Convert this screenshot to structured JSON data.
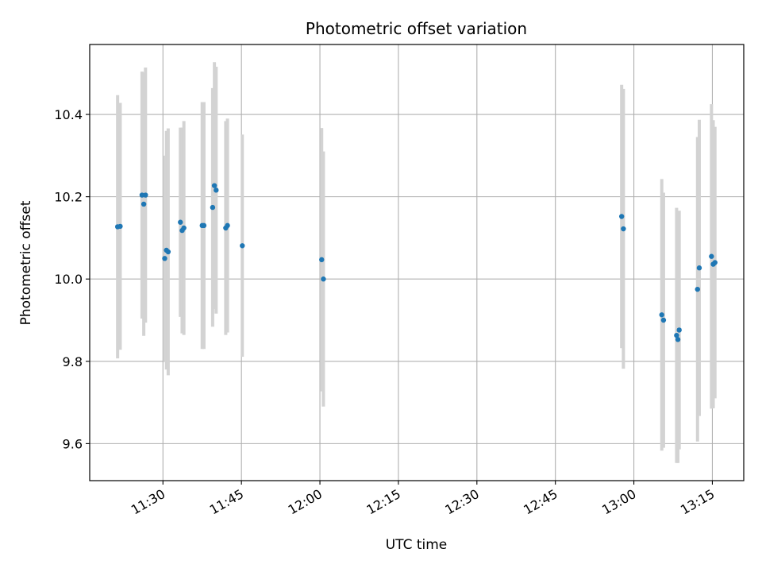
{
  "chart_data": {
    "type": "scatter",
    "title": "Photometric offset variation",
    "xlabel": "UTC time",
    "ylabel": "Photometric offset",
    "xlim": [
      "11:16",
      "13:21"
    ],
    "ylim": [
      9.51,
      10.57
    ],
    "grid": true,
    "x_ticks": [
      "11:30",
      "11:45",
      "12:00",
      "12:15",
      "12:30",
      "12:45",
      "13:00",
      "13:15"
    ],
    "y_ticks": [
      9.6,
      9.8,
      10.0,
      10.2,
      10.4
    ],
    "y_tick_labels": [
      "9.6",
      "9.8",
      "10.0",
      "10.2",
      "10.4"
    ],
    "point_color": "#1f77b4",
    "errorbar_color": "#d3d3d3",
    "points": [
      {
        "t": "11:21:20",
        "y": 10.127,
        "err": 0.32
      },
      {
        "t": "11:21:50",
        "y": 10.128,
        "err": 0.3
      },
      {
        "t": "11:26:00",
        "y": 10.204,
        "err": 0.3
      },
      {
        "t": "11:26:20",
        "y": 10.182,
        "err": 0.32
      },
      {
        "t": "11:26:40",
        "y": 10.204,
        "err": 0.31
      },
      {
        "t": "11:30:20",
        "y": 10.05,
        "err": 0.25
      },
      {
        "t": "11:30:40",
        "y": 10.07,
        "err": 0.29
      },
      {
        "t": "11:31:00",
        "y": 10.066,
        "err": 0.3
      },
      {
        "t": "11:33:20",
        "y": 10.138,
        "err": 0.23
      },
      {
        "t": "11:33:40",
        "y": 10.118,
        "err": 0.25
      },
      {
        "t": "11:34:00",
        "y": 10.124,
        "err": 0.26
      },
      {
        "t": "11:37:30",
        "y": 10.13,
        "err": 0.3
      },
      {
        "t": "11:37:50",
        "y": 10.13,
        "err": 0.3
      },
      {
        "t": "11:39:30",
        "y": 10.174,
        "err": 0.29
      },
      {
        "t": "11:39:50",
        "y": 10.227,
        "err": 0.3
      },
      {
        "t": "11:40:10",
        "y": 10.216,
        "err": 0.3
      },
      {
        "t": "11:42:00",
        "y": 10.124,
        "err": 0.26
      },
      {
        "t": "11:42:20",
        "y": 10.13,
        "err": 0.26
      },
      {
        "t": "11:45:10",
        "y": 10.081,
        "err": 0.27
      },
      {
        "t": "12:00:20",
        "y": 10.047,
        "err": 0.32
      },
      {
        "t": "12:00:40",
        "y": 10.0,
        "err": 0.31
      },
      {
        "t": "12:57:40",
        "y": 10.152,
        "err": 0.32
      },
      {
        "t": "12:58:00",
        "y": 10.122,
        "err": 0.34
      },
      {
        "t": "13:05:20",
        "y": 9.913,
        "err": 0.33
      },
      {
        "t": "13:05:40",
        "y": 9.9,
        "err": 0.31
      },
      {
        "t": "13:08:10",
        "y": 9.863,
        "err": 0.31
      },
      {
        "t": "13:08:25",
        "y": 9.853,
        "err": 0.3
      },
      {
        "t": "13:08:40",
        "y": 9.876,
        "err": 0.29
      },
      {
        "t": "13:12:10",
        "y": 9.975,
        "err": 0.37
      },
      {
        "t": "13:12:30",
        "y": 10.027,
        "err": 0.36
      },
      {
        "t": "13:14:50",
        "y": 10.055,
        "err": 0.37
      },
      {
        "t": "13:15:10",
        "y": 10.036,
        "err": 0.35
      },
      {
        "t": "13:15:30",
        "y": 10.04,
        "err": 0.33
      }
    ]
  }
}
